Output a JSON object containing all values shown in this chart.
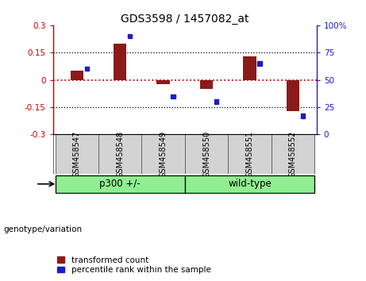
{
  "title": "GDS3598 / 1457082_at",
  "samples": [
    "GSM458547",
    "GSM458548",
    "GSM458549",
    "GSM458550",
    "GSM458551",
    "GSM458552"
  ],
  "red_bars": [
    0.05,
    0.2,
    -0.025,
    -0.05,
    0.13,
    -0.17
  ],
  "blue_squares_pct": [
    60,
    90,
    35,
    30,
    65,
    17
  ],
  "ylim_left": [
    -0.3,
    0.3
  ],
  "ylim_right": [
    0,
    100
  ],
  "yticks_left": [
    -0.3,
    -0.15,
    0,
    0.15,
    0.3
  ],
  "yticks_right": [
    0,
    25,
    50,
    75,
    100
  ],
  "bar_color": "#8B1A1A",
  "square_color": "#1C1CCC",
  "bg_color": "#FFFFFF",
  "plot_bg": "#FFFFFF",
  "hline_color": "#CC0000",
  "tick_label_area_color": "#D3D3D3",
  "group_row_color": "#90EE90",
  "legend_red_label": "transformed count",
  "legend_blue_label": "percentile rank within the sample",
  "genotype_label": "genotype/variation",
  "group1_label": "p300 +/-",
  "group2_label": "wild-type"
}
